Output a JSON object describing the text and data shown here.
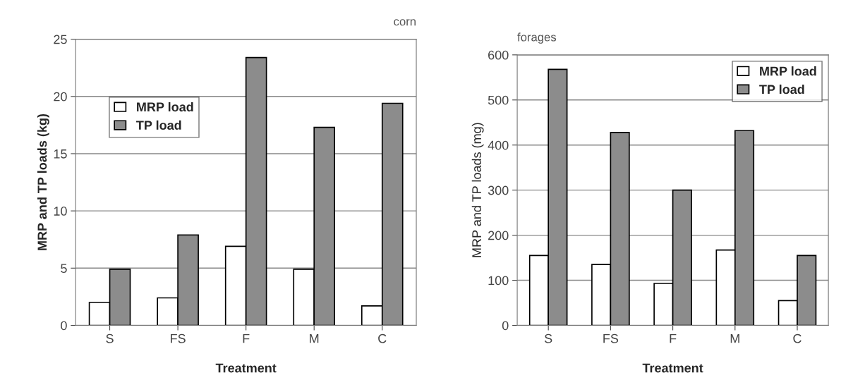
{
  "chart_data": [
    {
      "type": "bar",
      "title": "corn",
      "categories": [
        "S",
        "FS",
        "F",
        "M",
        "C"
      ],
      "xlabel": "Treatment",
      "ylabel": "MRP and TP loads (kg)",
      "series": [
        {
          "name": "MRP load",
          "color": "#ffffff",
          "values": [
            2.0,
            2.4,
            6.9,
            4.9,
            1.7
          ]
        },
        {
          "name": "TP load",
          "color": "#8c8c8c",
          "values": [
            4.9,
            7.9,
            23.4,
            17.3,
            19.4
          ]
        }
      ],
      "ylim": [
        0,
        25
      ],
      "yticks": [
        0,
        5,
        10,
        15,
        20,
        25
      ],
      "grid": "y",
      "legend": "top left"
    },
    {
      "type": "bar",
      "title": "forages",
      "categories": [
        "S",
        "FS",
        "F",
        "M",
        "C"
      ],
      "xlabel": "Treatment",
      "ylabel": "MRP and TP loads (mg)",
      "series": [
        {
          "name": "MRP load",
          "color": "#ffffff",
          "values": [
            155,
            135,
            93,
            167,
            55
          ]
        },
        {
          "name": "TP load",
          "color": "#8c8c8c",
          "values": [
            568,
            428,
            300,
            432,
            155
          ]
        }
      ],
      "ylim": [
        0,
        600
      ],
      "yticks": [
        0,
        100,
        200,
        300,
        400,
        500,
        600
      ],
      "grid": "y",
      "legend": "top right"
    }
  ]
}
